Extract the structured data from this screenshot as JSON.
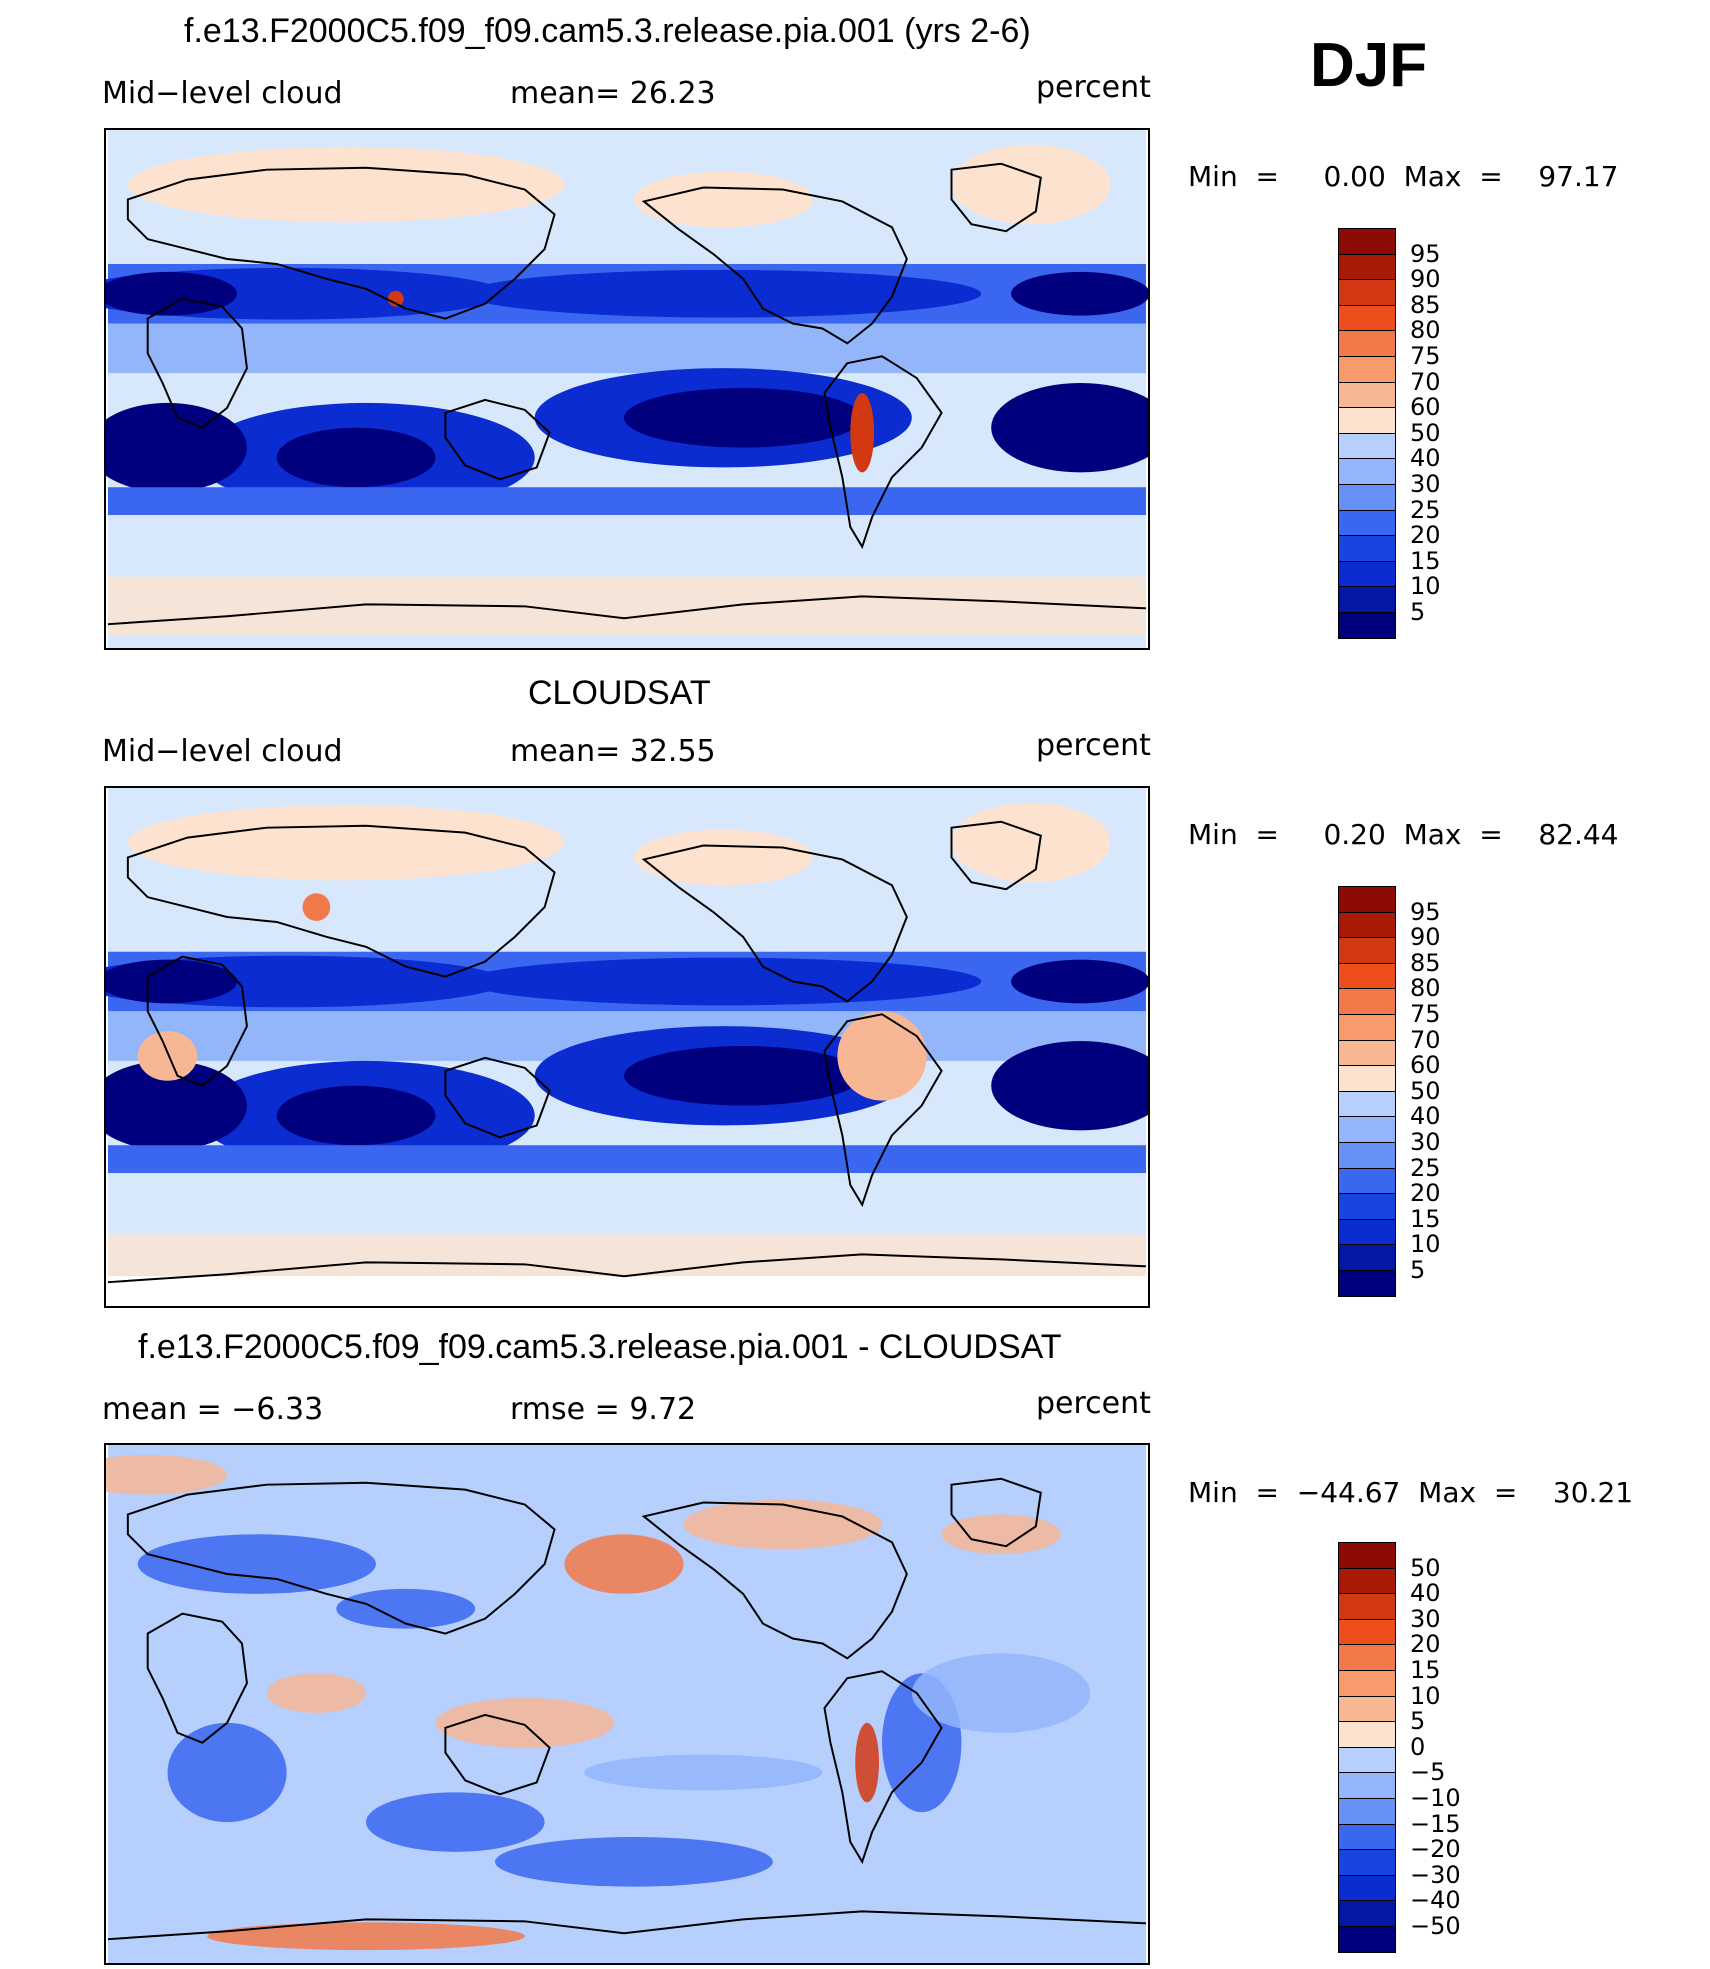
{
  "season": "DJF",
  "colors": {
    "dark_navy": "#00007f",
    "deep_blue": "#0a2cd0",
    "mid_blue": "#3a66f0",
    "light_blue": "#93b6fb",
    "pale_blue": "#d8e8fc",
    "pale_peach": "#fde3cf",
    "peach": "#f7b795",
    "orange": "#f27a4a",
    "red": "#d23812",
    "dark_red": "#8c0b05"
  },
  "panels": [
    {
      "id": "model",
      "title": "f.e13.F2000C5.f09_f09.cam5.3.release.pia.001 (yrs 2-6)",
      "left_label": "Mid−level cloud",
      "center_label": "mean=   26.23",
      "units": "percent",
      "minmax": "Min  =     0.00  Max  =    97.17",
      "colorbar_labels": [
        "95",
        "90",
        "85",
        "80",
        "75",
        "70",
        "60",
        "50",
        "40",
        "30",
        "25",
        "20",
        "15",
        "10",
        "5"
      ]
    },
    {
      "id": "obs",
      "title": "CLOUDSAT",
      "left_label": "Mid−level cloud",
      "center_label": "mean=   32.55",
      "units": "percent",
      "minmax": "Min  =     0.20  Max  =    82.44",
      "colorbar_labels": [
        "95",
        "90",
        "85",
        "80",
        "75",
        "70",
        "60",
        "50",
        "40",
        "30",
        "25",
        "20",
        "15",
        "10",
        "5"
      ]
    },
    {
      "id": "diff",
      "title": "f.e13.F2000C5.f09_f09.cam5.3.release.pia.001 - CLOUDSAT",
      "left_label": "mean  =    −6.33",
      "center_label": "rmse  =     9.72",
      "units": "percent",
      "minmax": "Min  =  −44.67  Max  =    30.21",
      "colorbar_labels": [
        "50",
        "40",
        "30",
        "20",
        "15",
        "10",
        "5",
        "0",
        "−5",
        "−10",
        "−15",
        "−20",
        "−30",
        "−40",
        "−50"
      ]
    }
  ]
}
